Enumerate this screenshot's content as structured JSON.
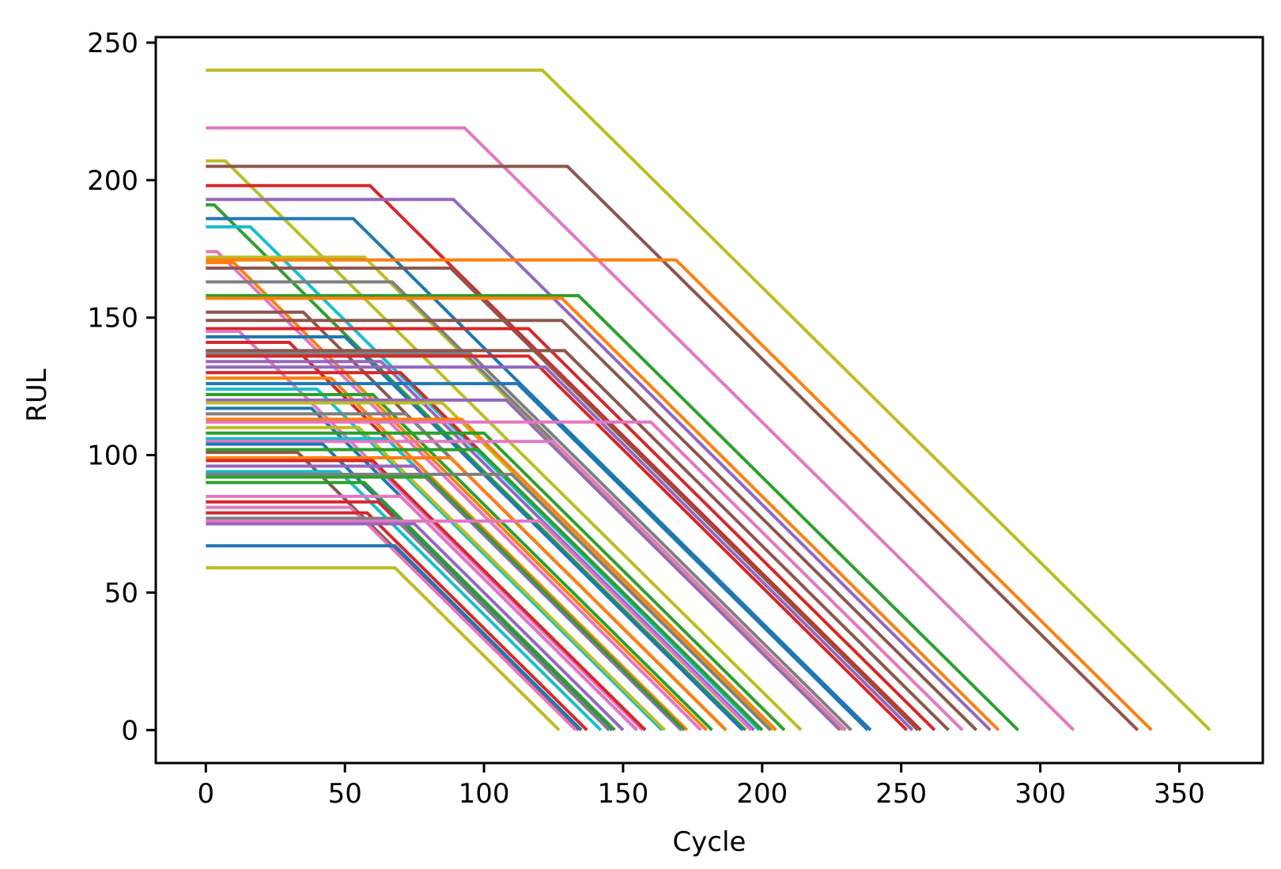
{
  "chart_data": {
    "type": "line",
    "title": "",
    "xlabel": "Cycle",
    "ylabel": "RUL",
    "xlim": [
      -18,
      380
    ],
    "ylim": [
      -12,
      252
    ],
    "xticks": [
      0,
      50,
      100,
      150,
      200,
      250,
      300,
      350
    ],
    "yticks": [
      0,
      50,
      100,
      150,
      200,
      250
    ],
    "grid": false,
    "legend": "none",
    "note": "Each series: RUL constant at plateau value from cycle 0 until knee, then decreasing with slope -1 to 0 at end cycle.",
    "palette": [
      "#1f77b4",
      "#ff7f0e",
      "#2ca02c",
      "#d62728",
      "#9467bd",
      "#8c564b",
      "#e377c2",
      "#7f7f7f",
      "#bcbd22",
      "#17becf"
    ],
    "series": [
      {
        "plateau": 240,
        "knee": 121,
        "end": 361,
        "color": "#bcbd22"
      },
      {
        "plateau": 219,
        "knee": 93,
        "end": 312,
        "color": "#e377c2"
      },
      {
        "plateau": 207,
        "knee": 7,
        "end": 214,
        "color": "#bcbd22"
      },
      {
        "plateau": 205,
        "knee": 130,
        "end": 335,
        "color": "#8c564b"
      },
      {
        "plateau": 198,
        "knee": 59,
        "end": 257,
        "color": "#d62728"
      },
      {
        "plateau": 193,
        "knee": 89,
        "end": 282,
        "color": "#9467bd"
      },
      {
        "plateau": 191,
        "knee": 3,
        "end": 194,
        "color": "#2ca02c"
      },
      {
        "plateau": 186,
        "knee": 53,
        "end": 239,
        "color": "#1f77b4"
      },
      {
        "plateau": 183,
        "knee": 16,
        "end": 199,
        "color": "#17becf"
      },
      {
        "plateau": 174,
        "knee": 4,
        "end": 178,
        "color": "#e377c2"
      },
      {
        "plateau": 172,
        "knee": 57,
        "end": 229,
        "color": "#bcbd22"
      },
      {
        "plateau": 171,
        "knee": 169,
        "end": 340,
        "color": "#ff7f0e"
      },
      {
        "plateau": 170,
        "knee": 10,
        "end": 180,
        "color": "#ff7f0e"
      },
      {
        "plateau": 168,
        "knee": 88,
        "end": 256,
        "color": "#8c564b"
      },
      {
        "plateau": 163,
        "knee": 67,
        "end": 230,
        "color": "#7f7f7f"
      },
      {
        "plateau": 158,
        "knee": 134,
        "end": 292,
        "color": "#2ca02c"
      },
      {
        "plateau": 157,
        "knee": 128,
        "end": 285,
        "color": "#ff7f0e"
      },
      {
        "plateau": 152,
        "knee": 35,
        "end": 187,
        "color": "#8c564b"
      },
      {
        "plateau": 149,
        "knee": 128,
        "end": 277,
        "color": "#8c564b"
      },
      {
        "plateau": 146,
        "knee": 116,
        "end": 262,
        "color": "#d62728"
      },
      {
        "plateau": 145,
        "knee": 12,
        "end": 157,
        "color": "#e377c2"
      },
      {
        "plateau": 143,
        "knee": 50,
        "end": 193,
        "color": "#1f77b4"
      },
      {
        "plateau": 141,
        "knee": 30,
        "end": 171,
        "color": "#d62728"
      },
      {
        "plateau": 138,
        "knee": 129,
        "end": 267,
        "color": "#8c564b"
      },
      {
        "plateau": 137,
        "knee": 95,
        "end": 232,
        "color": "#7f7f7f"
      },
      {
        "plateau": 136,
        "knee": 116,
        "end": 252,
        "color": "#d62728"
      },
      {
        "plateau": 134,
        "knee": 63,
        "end": 197,
        "color": "#9467bd"
      },
      {
        "plateau": 132,
        "knee": 122,
        "end": 254,
        "color": "#9467bd"
      },
      {
        "plateau": 130,
        "knee": 70,
        "end": 200,
        "color": "#d62728"
      },
      {
        "plateau": 128,
        "knee": 45,
        "end": 173,
        "color": "#ff7f0e"
      },
      {
        "plateau": 126,
        "knee": 112,
        "end": 238,
        "color": "#1f77b4"
      },
      {
        "plateau": 124,
        "knee": 40,
        "end": 164,
        "color": "#17becf"
      },
      {
        "plateau": 122,
        "knee": 60,
        "end": 182,
        "color": "#2ca02c"
      },
      {
        "plateau": 120,
        "knee": 108,
        "end": 228,
        "color": "#9467bd"
      },
      {
        "plateau": 119,
        "knee": 85,
        "end": 204,
        "color": "#bcbd22"
      },
      {
        "plateau": 117,
        "knee": 38,
        "end": 155,
        "color": "#1f77b4"
      },
      {
        "plateau": 115,
        "knee": 72,
        "end": 187,
        "color": "#7f7f7f"
      },
      {
        "plateau": 113,
        "knee": 92,
        "end": 205,
        "color": "#ff7f0e"
      },
      {
        "plateau": 112,
        "knee": 160,
        "end": 272,
        "color": "#e377c2"
      },
      {
        "plateau": 110,
        "knee": 55,
        "end": 165,
        "color": "#bcbd22"
      },
      {
        "plateau": 108,
        "knee": 100,
        "end": 208,
        "color": "#2ca02c"
      },
      {
        "plateau": 106,
        "knee": 65,
        "end": 171,
        "color": "#17becf"
      },
      {
        "plateau": 105,
        "knee": 125,
        "end": 230,
        "color": "#e377c2"
      },
      {
        "plateau": 104,
        "knee": 42,
        "end": 146,
        "color": "#1f77b4"
      },
      {
        "plateau": 102,
        "knee": 98,
        "end": 200,
        "color": "#2ca02c"
      },
      {
        "plateau": 101,
        "knee": 33,
        "end": 134,
        "color": "#8c564b"
      },
      {
        "plateau": 99,
        "knee": 88,
        "end": 187,
        "color": "#ff7f0e"
      },
      {
        "plateau": 98,
        "knee": 60,
        "end": 158,
        "color": "#d62728"
      },
      {
        "plateau": 96,
        "knee": 75,
        "end": 171,
        "color": "#9467bd"
      },
      {
        "plateau": 94,
        "knee": 48,
        "end": 142,
        "color": "#17becf"
      },
      {
        "plateau": 93,
        "knee": 110,
        "end": 203,
        "color": "#7f7f7f"
      },
      {
        "plateau": 92,
        "knee": 80,
        "end": 172,
        "color": "#2ca02c"
      },
      {
        "plateau": 90,
        "knee": 57,
        "end": 147,
        "color": "#2ca02c"
      },
      {
        "plateau": 85,
        "knee": 70,
        "end": 155,
        "color": "#e377c2"
      },
      {
        "plateau": 83,
        "knee": 62,
        "end": 145,
        "color": "#d62728"
      },
      {
        "plateau": 81,
        "knee": 52,
        "end": 133,
        "color": "#e377c2"
      },
      {
        "plateau": 79,
        "knee": 58,
        "end": 137,
        "color": "#d62728"
      },
      {
        "plateau": 77,
        "knee": 68,
        "end": 145,
        "color": "#7f7f7f"
      },
      {
        "plateau": 76,
        "knee": 120,
        "end": 196,
        "color": "#e377c2"
      },
      {
        "plateau": 75,
        "knee": 75,
        "end": 150,
        "color": "#9467bd"
      },
      {
        "plateau": 67,
        "knee": 68,
        "end": 135,
        "color": "#1f77b4"
      },
      {
        "plateau": 59,
        "knee": 68,
        "end": 127,
        "color": "#bcbd22"
      }
    ]
  }
}
